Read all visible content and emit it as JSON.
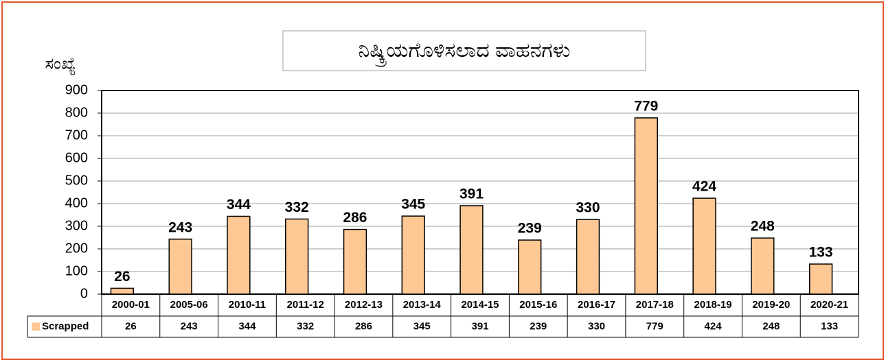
{
  "chart_data": {
    "type": "bar",
    "title": "ನಿಷ್ಕ್ರಿಯಗೊಳಿಸಲಾದ ವಾಹನಗಳು",
    "y_label": "ಸಂಖ್ಯೆ",
    "categories": [
      "2000-01",
      "2005-06",
      "2010-11",
      "2011-12",
      "2012-13",
      "2013-14",
      "2014-15",
      "2015-16",
      "2016-17",
      "2017-18",
      "2018-19",
      "2019-20",
      "2020-21"
    ],
    "series": [
      {
        "name": "Scrapped",
        "color": "#fdc893",
        "values": [
          26,
          243,
          344,
          332,
          286,
          345,
          391,
          239,
          330,
          779,
          424,
          248,
          133
        ]
      }
    ],
    "ylim": [
      0,
      900
    ],
    "yticks": [
      0,
      100,
      200,
      300,
      400,
      500,
      600,
      700,
      800,
      900
    ],
    "grid": true
  }
}
